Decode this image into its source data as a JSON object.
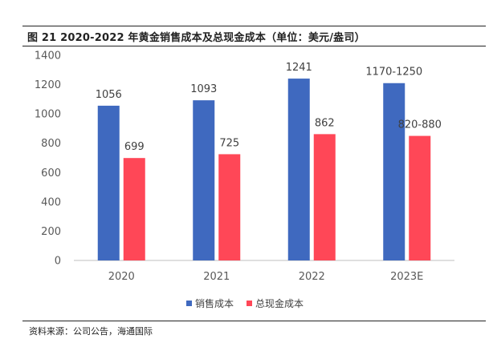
{
  "chart_data": {
    "type": "bar",
    "title": "图 21 2020-2022 年黄金销售成本及总现金成本（单位：美元/盎司）",
    "categories": [
      "2020",
      "2021",
      "2022",
      "2023E"
    ],
    "series": [
      {
        "name": "销售成本",
        "values": [
          1056,
          1093,
          1241,
          1210
        ],
        "labels": [
          "1056",
          "1093",
          "1241",
          "1170-1250"
        ],
        "color": "#3F69BF"
      },
      {
        "name": "总现金成本",
        "values": [
          699,
          725,
          862,
          850
        ],
        "labels": [
          "699",
          "725",
          "862",
          "820-880"
        ],
        "color": "#FF4757"
      }
    ],
    "ylim": [
      0,
      1400
    ],
    "yticks": [
      "0",
      "200",
      "400",
      "600",
      "800",
      "1000",
      "1200",
      "1400"
    ],
    "legend_position": "bottom",
    "grid": false
  },
  "source": "资料来源：公司公告，海通国际"
}
